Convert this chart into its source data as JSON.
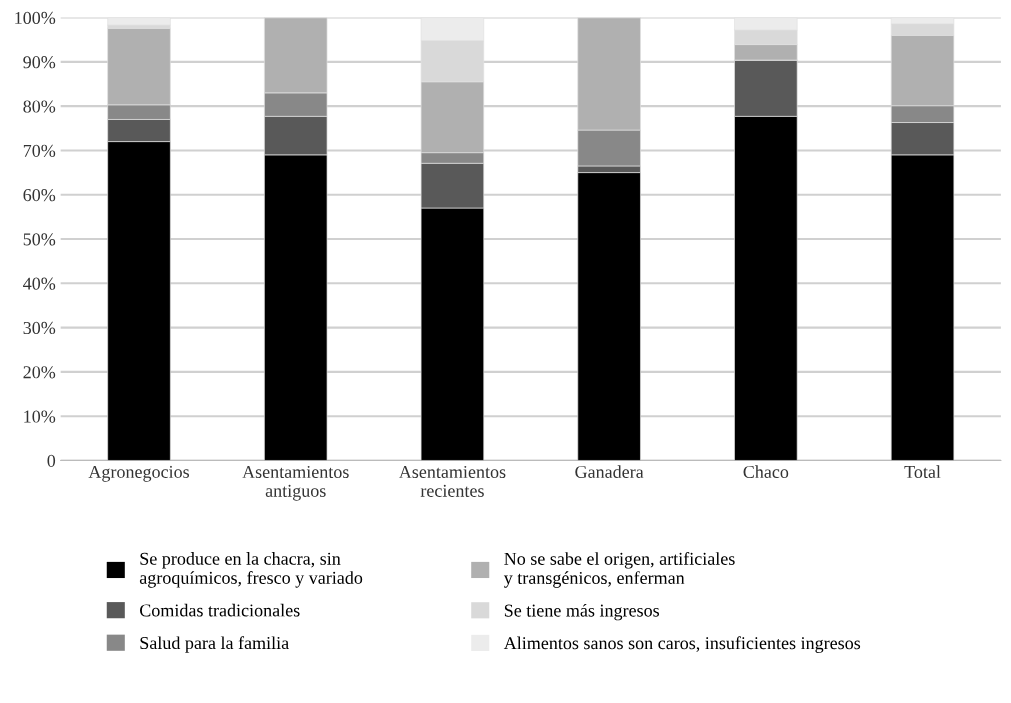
{
  "chart_data": {
    "type": "bar",
    "stacked": true,
    "categories": [
      "Agronegocios",
      "Asentamientos\nantiguos",
      "Asentamientos\nrecientes",
      "Ganadera",
      "Chaco",
      "Total"
    ],
    "series": [
      {
        "name": "Se produce en la chacra, sin\nagroquímicos, fresco y variado",
        "color": "#000000",
        "values": [
          72,
          69,
          57,
          65,
          77.7,
          69
        ]
      },
      {
        "name": "Comidas tradicionales",
        "color": "#595959",
        "values": [
          5,
          8.7,
          10.1,
          1.5,
          12.7,
          7.3
        ]
      },
      {
        "name": "Salud para la familia",
        "color": "#888888",
        "values": [
          3.3,
          5.3,
          2.4,
          8.1,
          0,
          3.8
        ]
      },
      {
        "name": "No se sabe el origen, artificiales\ny transgénicos, enferman",
        "color": "#b0b0b0",
        "values": [
          17.3,
          17,
          16,
          25.4,
          3.5,
          15.9
        ]
      },
      {
        "name": "Se tiene más ingresos",
        "color": "#d9d9d9",
        "values": [
          0.7,
          0,
          9.3,
          0,
          3.3,
          2.6
        ]
      },
      {
        "name": "Alimentos sanos son caros, insuficientes ingresos",
        "color": "#ececec",
        "values": [
          1.7,
          0,
          5.2,
          0,
          2.8,
          1.4
        ]
      }
    ],
    "ylim": [
      0,
      100
    ],
    "yticks": [
      {
        "value": 0,
        "label": "0"
      },
      {
        "value": 10,
        "label": "10%"
      },
      {
        "value": 20,
        "label": "20%"
      },
      {
        "value": 30,
        "label": "30%"
      },
      {
        "value": 40,
        "label": "40%"
      },
      {
        "value": 50,
        "label": "50%"
      },
      {
        "value": 60,
        "label": "60%"
      },
      {
        "value": 70,
        "label": "70%"
      },
      {
        "value": 80,
        "label": "80%"
      },
      {
        "value": 90,
        "label": "90%"
      },
      {
        "value": 100,
        "label": "100%"
      }
    ],
    "grid": "y",
    "legend": "bottom"
  }
}
